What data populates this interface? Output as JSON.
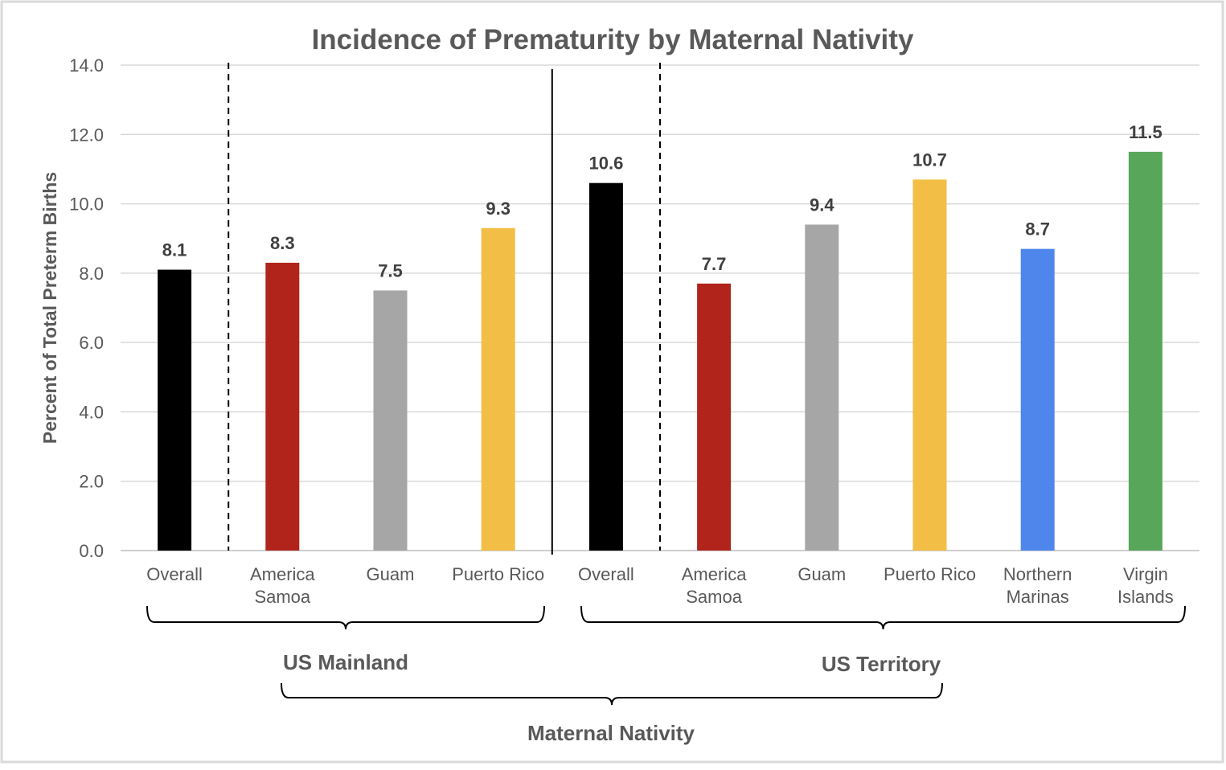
{
  "chart_data": {
    "type": "bar",
    "title": "Incidence of Prematurity by Maternal Nativity",
    "ylabel": "Percent of Total Preterm Births",
    "xlabel": "Maternal Nativity",
    "ylim": [
      0,
      14
    ],
    "y_ticks": [
      "0.0",
      "2.0",
      "4.0",
      "6.0",
      "8.0",
      "10.0",
      "12.0",
      "14.0"
    ],
    "grid": true,
    "legend": "none",
    "groups": [
      {
        "name": "US Mainland",
        "categories": [
          {
            "label": [
              "Overall"
            ],
            "value": 8.1,
            "value_label": "8.1",
            "color": "#000000"
          },
          {
            "label": [
              "America",
              "Samoa"
            ],
            "value": 8.3,
            "value_label": "8.3",
            "color": "#b0241b"
          },
          {
            "label": [
              "Guam"
            ],
            "value": 7.5,
            "value_label": "7.5",
            "color": "#a6a6a6"
          },
          {
            "label": [
              "Puerto Rico"
            ],
            "value": 9.3,
            "value_label": "9.3",
            "color": "#f2be45"
          }
        ]
      },
      {
        "name": "US Territory",
        "categories": [
          {
            "label": [
              "Overall"
            ],
            "value": 10.6,
            "value_label": "10.6",
            "color": "#000000"
          },
          {
            "label": [
              "America",
              "Samoa"
            ],
            "value": 7.7,
            "value_label": "7.7",
            "color": "#b0241b"
          },
          {
            "label": [
              "Guam"
            ],
            "value": 9.4,
            "value_label": "9.4",
            "color": "#a6a6a6"
          },
          {
            "label": [
              "Puerto Rico"
            ],
            "value": 10.7,
            "value_label": "10.7",
            "color": "#f2be45"
          },
          {
            "label": [
              "Northern",
              "Marinas"
            ],
            "value": 8.7,
            "value_label": "8.7",
            "color": "#4f86ec"
          },
          {
            "label": [
              "Virgin",
              "Islands"
            ],
            "value": 11.5,
            "value_label": "11.5",
            "color": "#57a65a"
          }
        ]
      }
    ]
  }
}
